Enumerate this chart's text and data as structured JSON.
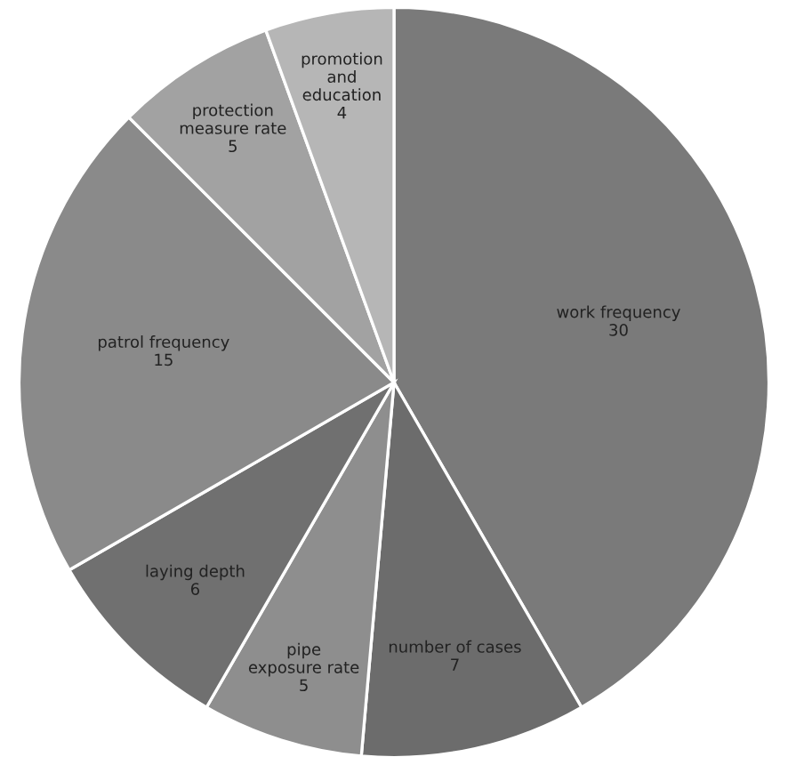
{
  "chart_data": {
    "type": "pie",
    "categories": [
      "work frequency",
      "number of cases",
      "pipe\nexposure rate",
      "laying depth",
      "patrol frequency",
      "protection\nmeasure rate",
      "promotion\nand\neducation"
    ],
    "values": [
      30,
      7,
      5,
      6,
      15,
      5,
      4
    ],
    "colors": [
      "#7a7a7a",
      "#6c6c6c",
      "#8e8e8e",
      "#707070",
      "#8a8a8a",
      "#a2a2a2",
      "#b6b6b6"
    ],
    "data_labels": true
  }
}
